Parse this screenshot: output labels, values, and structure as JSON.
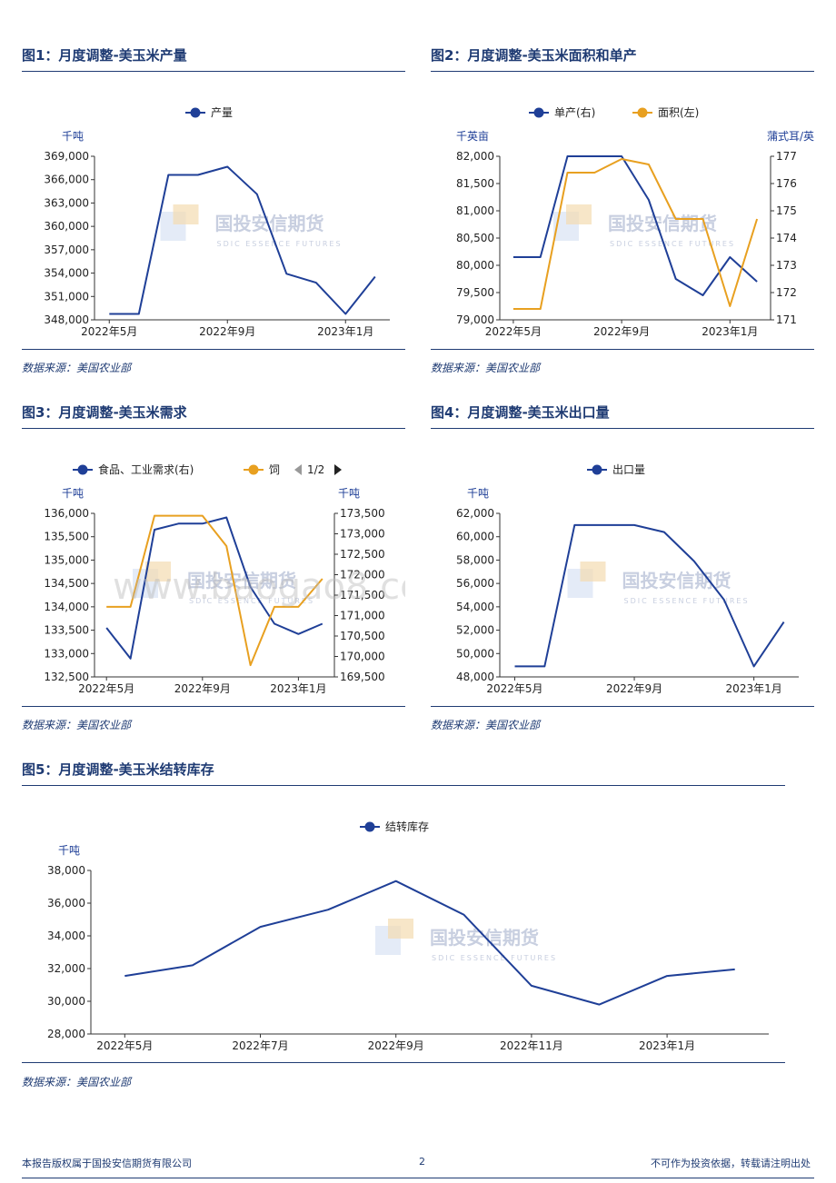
{
  "colors": {
    "navy": "#1f3f97",
    "orange": "#e8a020",
    "title": "#1f3b73"
  },
  "watermark": {
    "logo_text": "国投安信期货",
    "logo_sub": "SDIC ESSENCE FUTURES",
    "site": "www.baogao8.com"
  },
  "panels": [
    {
      "title": "图1：月度调整-美玉米产量",
      "source": "数据来源：美国农业部"
    },
    {
      "title": "图2：月度调整-美玉米面积和单产",
      "source": "数据来源：美国农业部"
    },
    {
      "title": "图3：月度调整-美玉米需求",
      "source": "数据来源：美国农业部"
    },
    {
      "title": "图4：月度调整-美玉米出口量",
      "source": "数据来源：美国农业部"
    },
    {
      "title": "图5：月度调整-美玉米结转库存",
      "source": "数据来源：美国农业部"
    }
  ],
  "footer": {
    "left": "本报告版权属于国投安信期货有限公司",
    "page": "2",
    "right": "不可作为投资依据，转载请注明出处"
  },
  "chart_data": [
    {
      "type": "line",
      "x": [
        "2022年5月",
        "2022年6月",
        "2022年7月",
        "2022年8月",
        "2022年9月",
        "2022年10月",
        "2022年11月",
        "2022年12月",
        "2023年1月",
        "2023年2月"
      ],
      "tick_labels": [
        "2022年5月",
        "2022年9月",
        "2023年1月"
      ],
      "ylabel": "千吨",
      "ylim": [
        348000,
        370000
      ],
      "yticks": [
        "348,000",
        "351,000",
        "354,000",
        "357,000",
        "360,000",
        "363,000",
        "366,000",
        "369,000"
      ],
      "series": [
        {
          "name": "产量",
          "color": "#1f3f97",
          "values": [
            348800,
            348800,
            367500,
            367500,
            368600,
            364900,
            354200,
            353000,
            348800,
            353800
          ]
        }
      ]
    },
    {
      "type": "line",
      "x": [
        "2022年5月",
        "2022年6月",
        "2022年7月",
        "2022年8月",
        "2022年9月",
        "2022年10月",
        "2022年11月",
        "2022年12月",
        "2023年1月",
        "2023年2月"
      ],
      "tick_labels": [
        "2022年5月",
        "2022年9月",
        "2023年1月"
      ],
      "ylabel": "千英亩",
      "ylabel_right": "蒲式耳/英亩",
      "ylim": [
        79000,
        82000
      ],
      "ylim_right": [
        171,
        177
      ],
      "yticks": [
        "79,000",
        "79,500",
        "80,000",
        "80,500",
        "81,000",
        "81,500",
        "82,000"
      ],
      "yticks_right": [
        "171",
        "172",
        "173",
        "174",
        "175",
        "176",
        "177"
      ],
      "series": [
        {
          "name": "单产(右)",
          "color": "#1f3f97",
          "axis": "right",
          "values": [
            173.3,
            173.3,
            177.0,
            177.0,
            177.0,
            175.4,
            172.5,
            171.9,
            173.3,
            172.4
          ]
        },
        {
          "name": "面积(左)",
          "color": "#e8a020",
          "axis": "left",
          "values": [
            79200,
            79200,
            81700,
            81700,
            81950,
            81850,
            80850,
            80850,
            79250,
            80850
          ]
        }
      ]
    },
    {
      "type": "line",
      "x": [
        "2022年5月",
        "2022年6月",
        "2022年7月",
        "2022年8月",
        "2022年9月",
        "2022年10月",
        "2022年11月",
        "2022年12月",
        "2023年1月",
        "2023年2月"
      ],
      "tick_labels": [
        "2022年5月",
        "2022年9月",
        "2023年1月"
      ],
      "ylabel": "千吨",
      "ylabel_right": "千吨",
      "ylim": [
        132500,
        136000
      ],
      "ylim_right": [
        169500,
        173500
      ],
      "yticks": [
        "132,500",
        "133,000",
        "133,500",
        "134,000",
        "134,500",
        "135,000",
        "135,500",
        "136,000"
      ],
      "yticks_right": [
        "169,500",
        "170,000",
        "170,500",
        "171,000",
        "171,500",
        "172,000",
        "172,500",
        "173,000",
        "173,500"
      ],
      "legend_pager": "1/2",
      "series": [
        {
          "name": "食品、工业需求(右)",
          "color": "#1f3f97",
          "axis": "right",
          "values": [
            170700,
            169950,
            173100,
            173250,
            173250,
            173400,
            171700,
            170800,
            170550,
            170800
          ]
        },
        {
          "name": "饲",
          "color": "#e8a020",
          "axis": "left",
          "values": [
            134000,
            134000,
            135950,
            135950,
            135950,
            135300,
            132750,
            134000,
            134000,
            134600
          ]
        }
      ]
    },
    {
      "type": "line",
      "x": [
        "2022年5月",
        "2022年6月",
        "2022年7月",
        "2022年8月",
        "2022年9月",
        "2022年10月",
        "2022年11月",
        "2022年12月",
        "2023年1月",
        "2023年2月"
      ],
      "tick_labels": [
        "2022年5月",
        "2022年9月",
        "2023年1月"
      ],
      "ylabel": "千吨",
      "ylim": [
        48000,
        62000
      ],
      "yticks": [
        "48,000",
        "50,000",
        "52,000",
        "54,000",
        "56,000",
        "58,000",
        "60,000",
        "62,000"
      ],
      "series": [
        {
          "name": "出口量",
          "color": "#1f3f97",
          "values": [
            48900,
            48900,
            61000,
            61000,
            61000,
            60400,
            57900,
            54600,
            48900,
            52700
          ]
        }
      ]
    },
    {
      "type": "line",
      "x": [
        "2022年5月",
        "2022年6月",
        "2022年7月",
        "2022年8月",
        "2022年9月",
        "2022年10月",
        "2022年11月",
        "2022年12月",
        "2023年1月",
        "2023年2月"
      ],
      "tick_labels": [
        "2022年5月",
        "2022年7月",
        "2022年9月",
        "2022年11月",
        "2023年1月"
      ],
      "ylabel": "千吨",
      "ylim": [
        28000,
        38000
      ],
      "yticks": [
        "28,000",
        "30,000",
        "32,000",
        "34,000",
        "36,000",
        "38,000"
      ],
      "series": [
        {
          "name": "结转库存",
          "color": "#1f3f97",
          "values": [
            31550,
            32200,
            34550,
            35600,
            37350,
            35300,
            30950,
            29800,
            31550,
            31950
          ]
        }
      ]
    }
  ]
}
